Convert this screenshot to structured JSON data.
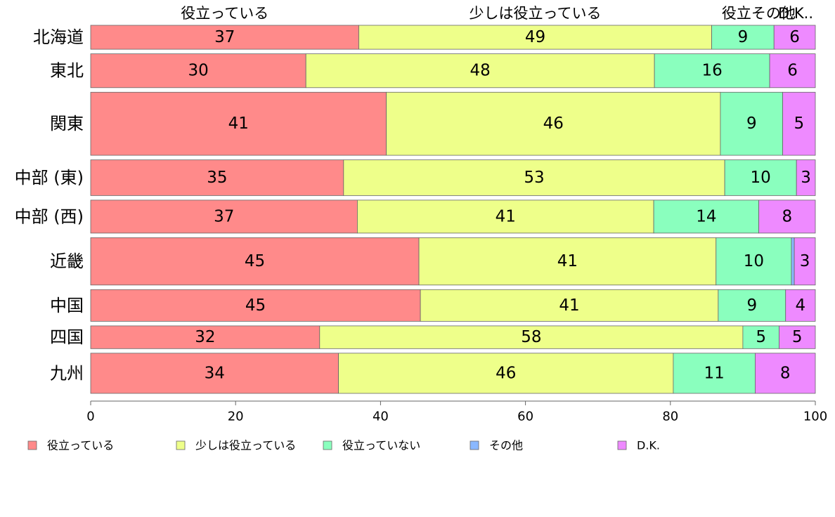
{
  "chart_data": {
    "type": "bar",
    "orientation": "horizontal",
    "stacked": true,
    "categories": [
      "北海道",
      "東北",
      "関東",
      "中部 (東)",
      "中部 (西)",
      "近畿",
      "中国",
      "四国",
      "九州"
    ],
    "series": [
      {
        "name": "役立っている",
        "color": "#ff8a8a",
        "values": [
          37,
          29.7,
          40.8,
          34.9,
          36.8,
          45.3,
          45.5,
          31.6,
          34.2
        ],
        "labels": [
          "37",
          "30",
          "41",
          "35",
          "37",
          "45",
          "45",
          "32",
          "34"
        ]
      },
      {
        "name": "少しは役立っている",
        "color": "#eeff8a",
        "values": [
          48.7,
          48.1,
          46.1,
          52.6,
          40.9,
          41.0,
          41.1,
          58.4,
          46.2
        ],
        "labels": [
          "49",
          "48",
          "46",
          "53",
          "41",
          "41",
          "41",
          "58",
          "46"
        ]
      },
      {
        "name": "役立っていない",
        "color": "#8affbe",
        "values": [
          8.6,
          15.9,
          8.6,
          9.9,
          14.5,
          10.4,
          9.3,
          5.0,
          11.3
        ],
        "labels": [
          "9",
          "16",
          "9",
          "10",
          "14",
          "10",
          "9",
          "5",
          "11"
        ]
      },
      {
        "name": "その他",
        "color": "#8ab8ff",
        "values": [
          0,
          0,
          0,
          0,
          0,
          0.4,
          0,
          0,
          0
        ],
        "labels": [
          "",
          "",
          "",
          "",
          "",
          "",
          "",
          "",
          ""
        ]
      },
      {
        "name": "D.K.",
        "color": "#ee8aff",
        "values": [
          5.7,
          6.3,
          4.5,
          2.6,
          7.8,
          2.9,
          4.1,
          5.0,
          8.3
        ],
        "labels": [
          "6",
          "6",
          "5",
          "3",
          "8",
          "3",
          "4",
          "5",
          "8"
        ]
      }
    ],
    "row_weights": [
      0.0337,
      0.0476,
      0.0887,
      0.0502,
      0.0464,
      0.0666,
      0.0446,
      0.032,
      0.0565
    ],
    "top_labels": [
      "役立っている",
      "少しは役立っている",
      "役立その他",
      "D.K.."
    ],
    "xlim": [
      0,
      100
    ],
    "xticks": [
      "0",
      "20",
      "40",
      "60",
      "80",
      "100"
    ],
    "legend_position": "bottom",
    "grid": false
  }
}
